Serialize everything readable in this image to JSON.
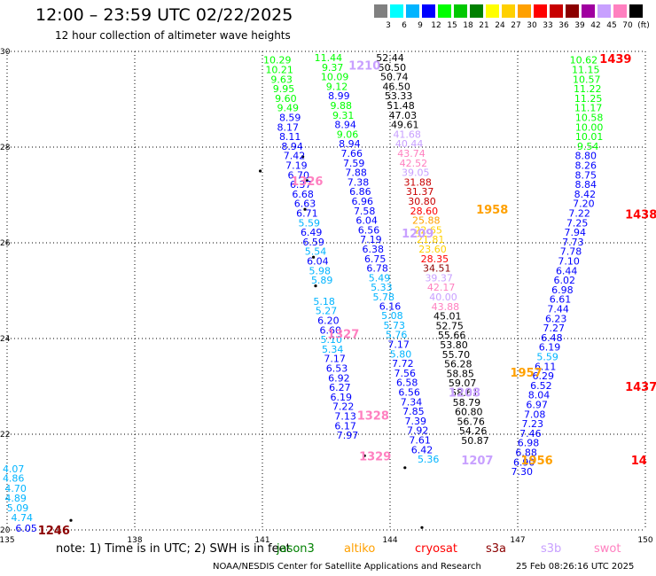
{
  "title": "12:00 – 23:59 UTC 02/22/2025",
  "subtitle": "12 hour collection of altimeter wave heights",
  "legend": {
    "colors": [
      "#808080",
      "#00ffff",
      "#00b4ff",
      "#0000ff",
      "#00ff00",
      "#00c800",
      "#008000",
      "#ffff00",
      "#ffd000",
      "#ffa000",
      "#ff0000",
      "#c80000",
      "#8b0000",
      "#a000a0",
      "#c8a0ff",
      "#ff80c0",
      "#000000"
    ],
    "labels": [
      "3",
      "6",
      "9",
      "12",
      "15",
      "18",
      "21",
      "24",
      "27",
      "30",
      "33",
      "36",
      "39",
      "42",
      "45",
      "70",
      "(ft)"
    ]
  },
  "map": {
    "lon_min": 135,
    "lon_max": 150,
    "lat_min": 20,
    "lat_max": 30,
    "x_ticks": [
      "135",
      "138",
      "141",
      "144",
      "147",
      "150"
    ],
    "y_ticks": [
      "20",
      "22",
      "24",
      "26",
      "28",
      "30"
    ],
    "grid": "dotted"
  },
  "passes": [
    {
      "label": "1246",
      "color": "#8b0000",
      "lon": 136.1,
      "lat": 20.0,
      "points": [
        [
          "4.07",
          135.15,
          21.28
        ],
        [
          "4.86",
          135.15,
          21.08
        ],
        [
          "4.70",
          135.2,
          20.87
        ],
        [
          "4.89",
          135.2,
          20.67
        ],
        [
          "5.09",
          135.25,
          20.46
        ],
        [
          "4.74",
          135.35,
          20.26
        ],
        [
          "6.05",
          135.45,
          20.04
        ]
      ]
    },
    {
      "label": "1326",
      "color": "#ff80c0",
      "lon": 142.05,
      "lat": 27.3,
      "points": [
        [
          "10.29",
          141.35,
          29.82
        ],
        [
          "10.21",
          141.4,
          29.62
        ],
        [
          "9.63",
          141.45,
          29.42
        ],
        [
          "9.95",
          141.5,
          29.22
        ],
        [
          "9.60",
          141.55,
          29.02
        ],
        [
          "9.49",
          141.6,
          28.82
        ],
        [
          "8.59",
          141.65,
          28.62
        ],
        [
          "8.17",
          141.6,
          28.42
        ],
        [
          "8.11",
          141.65,
          28.22
        ],
        [
          "8.94",
          141.7,
          28.02
        ],
        [
          "7.42",
          141.75,
          27.82
        ],
        [
          "7.19",
          141.8,
          27.62
        ],
        [
          "6.70",
          141.85,
          27.42
        ],
        [
          "6.37",
          141.9,
          27.22
        ],
        [
          "6.68",
          141.95,
          27.02
        ],
        [
          "6.63",
          142.0,
          26.82
        ],
        [
          "6.71",
          142.05,
          26.62
        ],
        [
          "5.59",
          142.1,
          26.42
        ],
        [
          "6.49",
          142.15,
          26.22
        ],
        [
          "6.59",
          142.2,
          26.02
        ],
        [
          "5.54",
          142.25,
          25.82
        ],
        [
          "6.04",
          142.3,
          25.62
        ],
        [
          "5.98",
          142.35,
          25.42
        ],
        [
          "5.89",
          142.4,
          25.22
        ]
      ]
    },
    {
      "label": "1327",
      "color": "#ff80c0",
      "lon": 142.9,
      "lat": 24.1,
      "points": [
        [
          "5.18",
          142.45,
          24.78
        ],
        [
          "5.27",
          142.5,
          24.58
        ],
        [
          "6.20",
          142.55,
          24.38
        ],
        [
          "6.60",
          142.6,
          24.18
        ],
        [
          "5.10",
          142.62,
          23.98
        ],
        [
          "5.34",
          142.65,
          23.78
        ],
        [
          "7.17",
          142.7,
          23.58
        ],
        [
          "6.53",
          142.75,
          23.38
        ],
        [
          "6.92",
          142.8,
          23.18
        ],
        [
          "6.27",
          142.82,
          22.98
        ],
        [
          "6.19",
          142.85,
          22.78
        ],
        [
          "7.22",
          142.9,
          22.58
        ],
        [
          "7.13",
          142.95,
          22.38
        ],
        [
          "6.17",
          142.95,
          22.18
        ],
        [
          "7.97",
          143.0,
          21.98
        ]
      ]
    },
    {
      "label": "1328",
      "color": "#ff80c0",
      "lon": 143.6,
      "lat": 22.4,
      "points": []
    },
    {
      "label": "1329",
      "color": "#ff80c0",
      "lon": 143.65,
      "lat": 21.55,
      "points": []
    },
    {
      "label": "1210",
      "color": "#c8a0ff",
      "lon": 143.4,
      "lat": 29.71,
      "points": [
        [
          "11.44",
          142.55,
          29.87
        ],
        [
          "9.37",
          142.65,
          29.67
        ],
        [
          "10.09",
          142.7,
          29.47
        ],
        [
          "9.12",
          142.75,
          29.27
        ],
        [
          "8.99",
          142.8,
          29.07
        ],
        [
          "9.88",
          142.85,
          28.87
        ],
        [
          "9.31",
          142.9,
          28.67
        ],
        [
          "8.94",
          142.95,
          28.47
        ],
        [
          "9.06",
          143.0,
          28.27
        ],
        [
          "8.94",
          143.05,
          28.07
        ],
        [
          "7.66",
          143.1,
          27.87
        ],
        [
          "7.59",
          143.15,
          27.67
        ],
        [
          "7.88",
          143.2,
          27.47
        ],
        [
          "7.38",
          143.25,
          27.27
        ],
        [
          "6.86",
          143.3,
          27.07
        ],
        [
          "6.96",
          143.35,
          26.87
        ],
        [
          "7.58",
          143.4,
          26.67
        ],
        [
          "6.04",
          143.45,
          26.47
        ],
        [
          "6.56",
          143.5,
          26.27
        ],
        [
          "7.19",
          143.55,
          26.07
        ],
        [
          "6.38",
          143.6,
          25.87
        ],
        [
          "6.75",
          143.65,
          25.67
        ],
        [
          "6.78",
          143.7,
          25.47
        ],
        [
          "5.49",
          143.75,
          25.27
        ],
        [
          "5.33",
          143.8,
          25.07
        ],
        [
          "5.78",
          143.85,
          24.87
        ]
      ]
    },
    {
      "label": "1209",
      "color": "#c8a0ff",
      "lon": 144.65,
      "lat": 26.2,
      "points": []
    },
    {
      "label": "1208",
      "color": "#c8a0ff",
      "lon": 145.75,
      "lat": 22.88,
      "points": [
        [
          "6.16",
          144.0,
          24.68
        ],
        [
          "5.08",
          144.05,
          24.48
        ],
        [
          "5.73",
          144.1,
          24.28
        ],
        [
          "5.76",
          144.15,
          24.08
        ],
        [
          "7.17",
          144.2,
          23.88
        ],
        [
          "5.80",
          144.25,
          23.68
        ],
        [
          "7.72",
          144.3,
          23.48
        ],
        [
          "7.56",
          144.35,
          23.28
        ],
        [
          "6.58",
          144.4,
          23.08
        ],
        [
          "6.56",
          144.45,
          22.88
        ],
        [
          "7.34",
          144.5,
          22.68
        ],
        [
          "7.85",
          144.55,
          22.48
        ],
        [
          "7.39",
          144.6,
          22.28
        ],
        [
          "7.92",
          144.65,
          22.08
        ],
        [
          "7.61",
          144.7,
          21.88
        ],
        [
          "6.42",
          144.75,
          21.68
        ],
        [
          "5.36",
          144.9,
          21.48
        ]
      ]
    },
    {
      "label": "1207",
      "color": "#c8a0ff",
      "lon": 146.05,
      "lat": 21.46,
      "points": []
    },
    {
      "label": "1958",
      "color": "#ffa000",
      "lon": 146.4,
      "lat": 26.7,
      "points": [
        [
          "52.44",
          144.0,
          29.87
        ],
        [
          "50.50",
          144.05,
          29.67
        ],
        [
          "50.74",
          144.1,
          29.47
        ],
        [
          "46.50",
          144.15,
          29.27
        ],
        [
          "53.33",
          144.2,
          29.07
        ],
        [
          "51.48",
          144.25,
          28.87
        ],
        [
          "47.03",
          144.3,
          28.67
        ],
        [
          "49.61",
          144.35,
          28.47
        ],
        [
          "41.68",
          144.4,
          28.27
        ],
        [
          "40.44",
          144.45,
          28.07
        ],
        [
          "43.74",
          144.5,
          27.87
        ],
        [
          "42.52",
          144.55,
          27.67
        ],
        [
          "39.05",
          144.6,
          27.47
        ],
        [
          "31.88",
          144.65,
          27.27
        ],
        [
          "31.37",
          144.7,
          27.07
        ],
        [
          "30.80",
          144.75,
          26.87
        ],
        [
          "28.60",
          144.8,
          26.67
        ],
        [
          "25.88",
          144.85,
          26.47
        ],
        [
          "22.65",
          144.9,
          26.27
        ],
        [
          "21.81",
          144.95,
          26.07
        ],
        [
          "23.60",
          145.0,
          25.87
        ],
        [
          "28.35",
          145.05,
          25.67
        ],
        [
          "34.51",
          145.1,
          25.47
        ],
        [
          "39.37",
          145.15,
          25.27
        ],
        [
          "42.17",
          145.2,
          25.07
        ],
        [
          "40.00",
          145.25,
          24.87
        ],
        [
          "43.88",
          145.3,
          24.67
        ],
        [
          "45.01",
          145.35,
          24.47
        ],
        [
          "52.75",
          145.4,
          24.27
        ],
        [
          "55.66",
          145.45,
          24.07
        ],
        [
          "53.80",
          145.5,
          23.87
        ],
        [
          "55.70",
          145.55,
          23.67
        ],
        [
          "56.28",
          145.6,
          23.47
        ],
        [
          "58.85",
          145.65,
          23.27
        ],
        [
          "59.07",
          145.7,
          23.07
        ],
        [
          "58.61",
          145.75,
          22.87
        ],
        [
          "58.79",
          145.8,
          22.67
        ],
        [
          "60.80",
          145.85,
          22.47
        ],
        [
          "56.76",
          145.9,
          22.27
        ],
        [
          "54.26",
          145.95,
          22.07
        ],
        [
          "50.87",
          146.0,
          21.87
        ]
      ]
    },
    {
      "label": "1957",
      "color": "#ffa000",
      "lon": 147.2,
      "lat": 23.3,
      "points": []
    },
    {
      "label": "1956",
      "color": "#ffa000",
      "lon": 147.45,
      "lat": 21.46,
      "points": []
    },
    {
      "label": "1439",
      "color": "#ff0000",
      "lon": 149.3,
      "lat": 29.85,
      "points": [
        [
          "10.62",
          148.55,
          29.82
        ],
        [
          "11.15",
          148.6,
          29.62
        ],
        [
          "10.57",
          148.62,
          29.42
        ],
        [
          "11.22",
          148.64,
          29.22
        ],
        [
          "11.25",
          148.66,
          29.02
        ],
        [
          "11.17",
          148.66,
          28.82
        ],
        [
          "10.58",
          148.68,
          28.62
        ],
        [
          "10.00",
          148.68,
          28.42
        ],
        [
          "10.01",
          148.68,
          28.22
        ],
        [
          "9.54",
          148.65,
          28.02
        ],
        [
          "8.80",
          148.6,
          27.82
        ],
        [
          "8.26",
          148.6,
          27.62
        ],
        [
          "8.75",
          148.6,
          27.42
        ],
        [
          "8.84",
          148.6,
          27.22
        ],
        [
          "8.42",
          148.58,
          27.02
        ],
        [
          "7.20",
          148.55,
          26.82
        ]
      ]
    },
    {
      "label": "1438",
      "color": "#ff0000",
      "lon": 149.9,
      "lat": 26.6,
      "points": [
        [
          "7.22",
          148.45,
          26.62
        ],
        [
          "7.25",
          148.4,
          26.42
        ],
        [
          "7.94",
          148.35,
          26.22
        ],
        [
          "7.73",
          148.3,
          26.02
        ],
        [
          "7.78",
          148.25,
          25.82
        ],
        [
          "7.10",
          148.2,
          25.62
        ],
        [
          "6.44",
          148.15,
          25.42
        ],
        [
          "6.02",
          148.1,
          25.22
        ],
        [
          "6.98",
          148.05,
          25.02
        ],
        [
          "6.61",
          148.0,
          24.82
        ],
        [
          "7.44",
          147.95,
          24.62
        ],
        [
          "6.23",
          147.9,
          24.42
        ],
        [
          "7.27",
          147.85,
          24.22
        ],
        [
          "6.48",
          147.8,
          24.02
        ],
        [
          "6.19",
          147.75,
          23.82
        ],
        [
          "5.59",
          147.7,
          23.62
        ],
        [
          "6.11",
          147.65,
          23.42
        ],
        [
          "6.29",
          147.6,
          23.22
        ],
        [
          "6.52",
          147.55,
          23.02
        ],
        [
          "8.04",
          147.5,
          22.82
        ],
        [
          "6.97",
          147.45,
          22.62
        ],
        [
          "7.08",
          147.4,
          22.42
        ],
        [
          "7.23",
          147.35,
          22.22
        ],
        [
          "7.46",
          147.3,
          22.02
        ],
        [
          "6.98",
          147.25,
          21.82
        ],
        [
          "6.88",
          147.2,
          21.62
        ],
        [
          "6.90",
          147.15,
          21.42
        ],
        [
          "7.30",
          147.1,
          21.22
        ]
      ]
    },
    {
      "label": "1437",
      "color": "#ff0000",
      "lon": 149.9,
      "lat": 23.0,
      "points": []
    },
    {
      "label": "14",
      "color": "#ff0000",
      "lon": 149.85,
      "lat": 21.46,
      "points": []
    }
  ],
  "islands": [
    [
      141.95,
      27.8
    ],
    [
      142.05,
      27.3
    ],
    [
      142.0,
      26.7
    ],
    [
      140.95,
      27.5
    ],
    [
      142.2,
      25.7
    ],
    [
      142.25,
      25.1
    ],
    [
      143.4,
      21.55
    ],
    [
      136.5,
      20.2
    ],
    [
      144.35,
      21.3
    ],
    [
      144.75,
      20.05
    ]
  ],
  "note": "note:  1) Time is in UTC;  2) SWH is in feet",
  "satellites": [
    {
      "name": "jason3",
      "color": "#008000"
    },
    {
      "name": "altiko",
      "color": "#ffa000"
    },
    {
      "name": "cryosat",
      "color": "#ff0000"
    },
    {
      "name": "s3a",
      "color": "#8b0000"
    },
    {
      "name": "s3b",
      "color": "#c8a0ff"
    },
    {
      "name": "swot",
      "color": "#ff80c0"
    }
  ],
  "credit": "NOAA/NESDIS Center for Satellite Applications and Research",
  "timestamp": "25 Feb 08:26:16 UTC 2025"
}
